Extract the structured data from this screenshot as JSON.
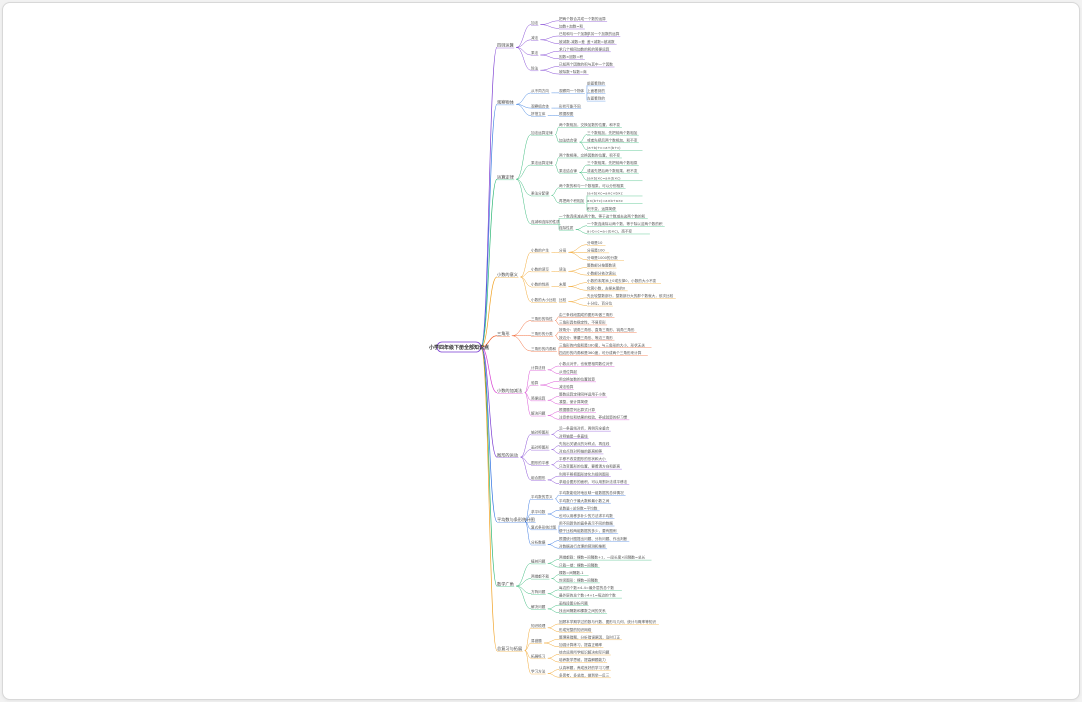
{
  "root": {
    "label": "小学四年级下册全部知识点"
  },
  "colors": {
    "root_border": "#7a3bd1",
    "branches": [
      "#7a3bd1",
      "#3a7fe0",
      "#2bb673",
      "#f0a020",
      "#f05a24",
      "#d63fd0",
      "#7a3bd1",
      "#2b6fe0",
      "#2bb673",
      "#f0a020"
    ]
  },
  "icons": {
    "root": "mind-map-root-node"
  },
  "branches": [
    {
      "label": "四则运算",
      "children": [
        {
          "label": "加法",
          "children": [
            {
              "label": "把两个数合并成一个数的运算"
            },
            {
              "label": "加数+加数=和"
            }
          ]
        },
        {
          "label": "减法",
          "children": [
            {
              "label": "已知和与一个加数",
              "children": [
                {
                  "label": "求另一个加数的运算"
                }
              ]
            },
            {
              "label": "被减数-减数=差",
              "children": [
                {
                  "label": "差+减数=被减数"
                }
              ]
            }
          ]
        },
        {
          "label": "乘法",
          "children": [
            {
              "label": "求几个相同加数的和的简便运算"
            },
            {
              "label": "因数×因数=积"
            }
          ]
        },
        {
          "label": "除法",
          "children": [
            {
              "label": "已知两个因数的积与其中一个因数"
            },
            {
              "label": "被除数÷除数=商"
            }
          ]
        }
      ]
    },
    {
      "label": "观察物体",
      "children": [
        {
          "label": "从不同方向",
          "children": [
            {
              "label": "观察同一个物体",
              "children": [
                {
                  "label": "前面看到的"
                },
                {
                  "label": "上面看到的"
                },
                {
                  "label": "左面看到的"
                }
              ]
            }
          ]
        },
        {
          "label": "观察组合体",
          "children": [
            {
              "label": "形状可能不同"
            }
          ]
        },
        {
          "label": "拼搭立体",
          "children": [
            {
              "label": "根据视图"
            }
          ]
        }
      ]
    },
    {
      "label": "运算定律",
      "children": [
        {
          "label": "加法运算定律",
          "children": [
            {
              "label": "两个数相加，交换加数的位置，和不变"
            },
            {
              "label": "加法结合律",
              "children": [
                {
                  "label": "三个数相加，先把前两个数相加"
                },
                {
                  "label": "或者先把后两个数相加，和不变"
                },
                {
                  "label": "(a+b)+c=a+(b+c)"
                }
              ]
            }
          ]
        },
        {
          "label": "乘法运算定律",
          "children": [
            {
              "label": "两个数相乘，交换因数的位置，积不变"
            },
            {
              "label": "乘法结合律",
              "children": [
                {
                  "label": "三个数相乘，先把前两个数相乘"
                },
                {
                  "label": "或者先把后两个数相乘，积不变"
                },
                {
                  "label": "(a×b)×c=a×(b×c)"
                }
              ]
            }
          ]
        },
        {
          "label": "乘法分配律",
          "children": [
            {
              "label": "两个数的和与一个数相乘，可以分别相乘"
            },
            {
              "label": "再把两个积相加",
              "children": [
                {
                  "label": "(a+b)×c=a×c+b×c"
                },
                {
                  "label": "a×(b+c)=a×b+a×c"
                },
                {
                  "label": "积不变，运算简便"
                }
              ]
            }
          ]
        },
        {
          "label": "连减和连除的性质",
          "children": [
            {
              "label": "一个数连续减去两个数，等于这个数减去这两个数的和"
            },
            {
              "label": "连除性质",
              "children": [
                {
                  "label": "一个数连续除以两个数，等于除以这两个数的积"
                },
                {
                  "label": "a÷b÷c=a÷(b×c)，商不变"
                }
              ]
            }
          ]
        }
      ]
    },
    {
      "label": "小数的意义",
      "children": [
        {
          "label": "小数的产生",
          "children": [
            {
              "label": "分母",
              "children": [
                {
                  "label": "分母是10"
                },
                {
                  "label": "分母是100"
                },
                {
                  "label": "分母是1000的分数"
                }
              ]
            }
          ]
        },
        {
          "label": "小数的读写",
          "children": [
            {
              "label": "读法",
              "children": [
                {
                  "label": "整数部分按整数读"
                },
                {
                  "label": "小数部分依次读出"
                }
              ]
            }
          ]
        },
        {
          "label": "小数的性质",
          "children": [
            {
              "label": "末尾",
              "children": [
                {
                  "label": "小数的末尾添上0或去掉0，小数的大小不变"
                },
                {
                  "label": "化简小数，去掉末尾的0"
                }
              ]
            }
          ]
        },
        {
          "label": "小数的大小比较",
          "children": [
            {
              "label": "比较",
              "children": [
                {
                  "label": "先比较整数部分，整数部分大的那个数就大，依次比较"
                },
                {
                  "label": "十分位、百分位"
                }
              ]
            }
          ]
        }
      ]
    },
    {
      "label": "三角形",
      "children": [
        {
          "label": "三角形的特性",
          "children": [
            {
              "label": "由三条线段围成的图形叫做三角形"
            },
            {
              "label": "三角形具有稳定性，不易变形"
            }
          ]
        },
        {
          "label": "三角形的分类",
          "children": [
            {
              "label": "按角分：锐角三角形、直角三角形、钝角三角形"
            },
            {
              "label": "按边分：等腰三角形、等边三角形"
            }
          ]
        },
        {
          "label": "三角形的内角和",
          "children": [
            {
              "label": "三角形的内角和是180度，与三角形的大小、形状无关"
            },
            {
              "label": "四边形的内角和是360度，可分成两个三角形来计算"
            }
          ]
        }
      ]
    },
    {
      "label": "小数的加减法",
      "children": [
        {
          "label": "计算法则",
          "children": [
            {
              "label": "小数点对齐，也就是相同数位对齐"
            },
            {
              "label": "从低位算起"
            }
          ]
        },
        {
          "label": "验算",
          "children": [
            {
              "label": "用交换加数的位置验算"
            },
            {
              "label": "减法验算"
            }
          ]
        },
        {
          "label": "简便运算",
          "children": [
            {
              "label": "整数运算定律同样适用于小数"
            },
            {
              "label": "凑整，使计算简便"
            }
          ]
        },
        {
          "label": "解决问题",
          "children": [
            {
              "label": "根据题意列出算式计算"
            },
            {
              "label": "注意单位和结果的检验，养成验算的好习惯"
            }
          ]
        }
      ]
    },
    {
      "label": "图形的运动",
      "children": [
        {
          "label": "轴对称图形",
          "children": [
            {
              "label": "沿一条直线对折，两侧完全重合"
            },
            {
              "label": "对称轴是一条直线"
            }
          ]
        },
        {
          "label": "画对称图形",
          "children": [
            {
              "label": "先找出关键点的对称点，再连线"
            },
            {
              "label": "对应点到对称轴的距离相等"
            }
          ]
        },
        {
          "label": "图形的平移",
          "children": [
            {
              "label": "平移不改变图形的形状和大小"
            },
            {
              "label": "只改变图形的位置，要看清方向和距离"
            }
          ]
        },
        {
          "label": "组合图形",
          "children": [
            {
              "label": "利用平移把图形转化为规则图形"
            },
            {
              "label": "求组合图形的面积，可以用割补法或平移法"
            }
          ]
        }
      ]
    },
    {
      "label": "平均数与条形统计图",
      "children": [
        {
          "label": "平均数的意义",
          "children": [
            {
              "label": "平均数能较好地反映一组数据的总体情况"
            },
            {
              "label": "平均数介于最大数和最小数之间"
            }
          ]
        },
        {
          "label": "求平均数",
          "children": [
            {
              "label": "总数量÷总份数=平均数"
            },
            {
              "label": "也可以用移多补少的方法求平均数"
            }
          ]
        },
        {
          "label": "复式条形统计图",
          "children": [
            {
              "label": "用不同颜色的直条表示不同的数据"
            },
            {
              "label": "便于比较两组数据的多少，要有图例"
            }
          ]
        },
        {
          "label": "分析数据",
          "children": [
            {
              "label": "根据统计图提出问题、分析问题、作出判断"
            },
            {
              "label": "对数据进行合理的预测和推断"
            }
          ]
        }
      ]
    },
    {
      "label": "数学广角",
      "children": [
        {
          "label": "植树问题",
          "children": [
            {
              "label": "两端都栽：棵数=间隔数+1，一段长度×间隔数=总长"
            },
            {
              "label": "只栽一端：棵数=间隔数"
            }
          ]
        },
        {
          "label": "两端都不栽",
          "children": [
            {
              "label": "棵数=间隔数-1"
            },
            {
              "label": "封闭图形：棵数=间隔数"
            }
          ]
        },
        {
          "label": "方阵问题",
          "children": [
            {
              "label": "每边的个数×4-4=最外层的总个数"
            },
            {
              "label": "最外层的总个数÷4+1=每边的个数"
            }
          ]
        },
        {
          "label": "解决问题",
          "children": [
            {
              "label": "画线段图分析问题"
            },
            {
              "label": "找出间隔数和棵数之间的关系"
            }
          ]
        }
      ]
    },
    {
      "label": "总复习与拓展",
      "children": [
        {
          "label": "知识梳理",
          "children": [
            {
              "label": "回顾本学期学过的数与代数、图形与几何、统计与概率等知识"
            },
            {
              "label": "形成完整的知识网络"
            }
          ]
        },
        {
          "label": "易错题",
          "children": [
            {
              "label": "整理易错题，分析错误原因，及时订正"
            },
            {
              "label": "加强计算练习，提高正确率"
            }
          ]
        },
        {
          "label": "拓展练习",
          "children": [
            {
              "label": "综合运用所学知识解决实际问题"
            },
            {
              "label": "培养数学思维，提高解题能力"
            }
          ]
        },
        {
          "label": "学习方法",
          "children": [
            {
              "label": "认真审题，养成良好的学习习惯"
            },
            {
              "label": "多思考、多总结，做到举一反三"
            }
          ]
        }
      ]
    }
  ]
}
